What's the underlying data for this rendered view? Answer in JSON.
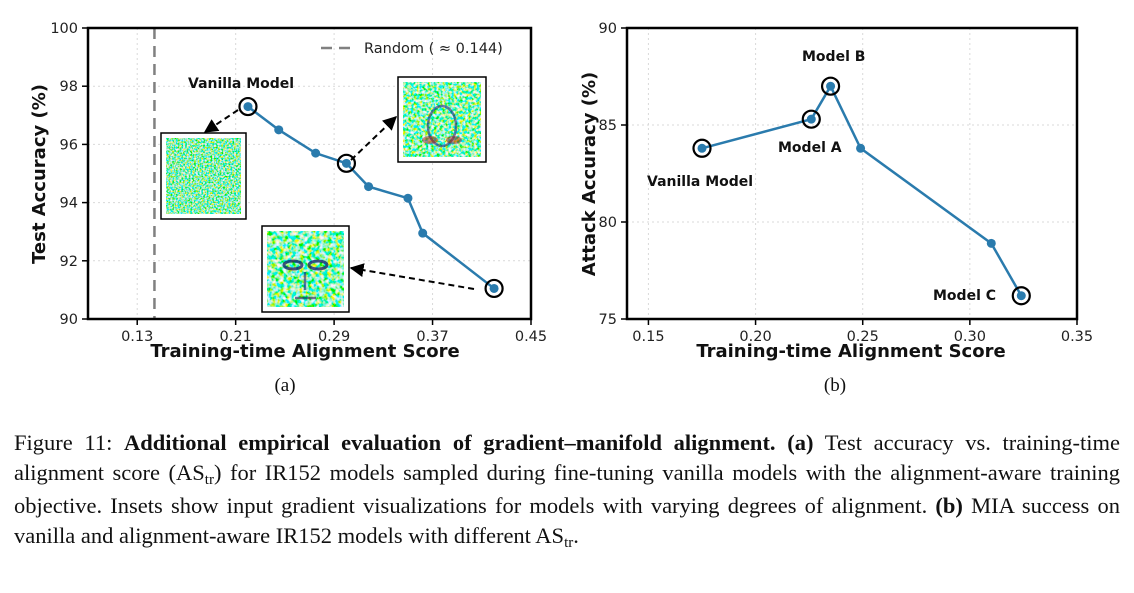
{
  "chart_data": [
    {
      "type": "line",
      "panel_label": "(a)",
      "xlabel": "Training-time Alignment Score",
      "ylabel": "Test Accuracy (%)",
      "xlim": [
        0.09,
        0.45
      ],
      "ylim": [
        90,
        100
      ],
      "xticks": [
        "0.13",
        "0.21",
        "0.29",
        "0.37",
        "0.45"
      ],
      "yticks": [
        "90",
        "92",
        "94",
        "96",
        "98",
        "100"
      ],
      "grid": true,
      "legend": {
        "position": "top-right",
        "label": "Random ( ≈ 0.144)"
      },
      "reference_line": {
        "x": 0.144,
        "style": "dashed",
        "color": "#808080"
      },
      "series": [
        {
          "color": "#2a7bad",
          "x": [
            0.22,
            0.245,
            0.275,
            0.3,
            0.318,
            0.35,
            0.362,
            0.42
          ],
          "y": [
            97.3,
            96.5,
            95.7,
            95.35,
            94.55,
            94.15,
            92.95,
            91.05
          ]
        }
      ],
      "highlighted_points": [
        {
          "x": 0.22,
          "y": 97.3,
          "label": "Vanilla Model"
        },
        {
          "x": 0.3,
          "y": 95.35
        },
        {
          "x": 0.42,
          "y": 91.05
        }
      ],
      "insets": [
        "input-gradient-vanilla",
        "input-gradient-mid",
        "input-gradient-aligned"
      ]
    },
    {
      "type": "line",
      "panel_label": "(b)",
      "xlabel": "Training-time Alignment Score",
      "ylabel": "Attack Accuracy (%)",
      "xlim": [
        0.14,
        0.35
      ],
      "ylim": [
        75,
        90
      ],
      "xticks": [
        "0.15",
        "0.20",
        "0.25",
        "0.30",
        "0.35"
      ],
      "yticks": [
        "75",
        "80",
        "85",
        "90"
      ],
      "grid": true,
      "series": [
        {
          "color": "#2a7bad",
          "x": [
            0.175,
            0.226,
            0.235,
            0.249,
            0.31,
            0.324
          ],
          "y": [
            83.8,
            85.3,
            87.0,
            83.8,
            78.9,
            76.2
          ]
        }
      ],
      "highlighted_points": [
        {
          "x": 0.175,
          "y": 83.8,
          "label": "Vanilla Model"
        },
        {
          "x": 0.226,
          "y": 85.3,
          "label": "Model A"
        },
        {
          "x": 0.235,
          "y": 87.0,
          "label": "Model B"
        },
        {
          "x": 0.324,
          "y": 76.2,
          "label": "Model C"
        }
      ]
    }
  ],
  "caption": {
    "figure_label": "Figure 11:",
    "bold_title": "Additional empirical evaluation of gradient–manifold alignment.",
    "part_a_label": "(a)",
    "part_a_text_1": "Test accuracy vs. training-time alignment score (AS",
    "sub_tr": "tr",
    "part_a_text_2": ") for IR152 models sampled during fine-tuning vanilla models with the alignment-aware training objective. Insets show input gradient visualizations for models with varying degrees of alignment.",
    "part_b_label": "(b)",
    "part_b_text_1": "MIA success on vanilla and alignment-aware IR152 models with different AS",
    "part_b_text_2": "."
  }
}
